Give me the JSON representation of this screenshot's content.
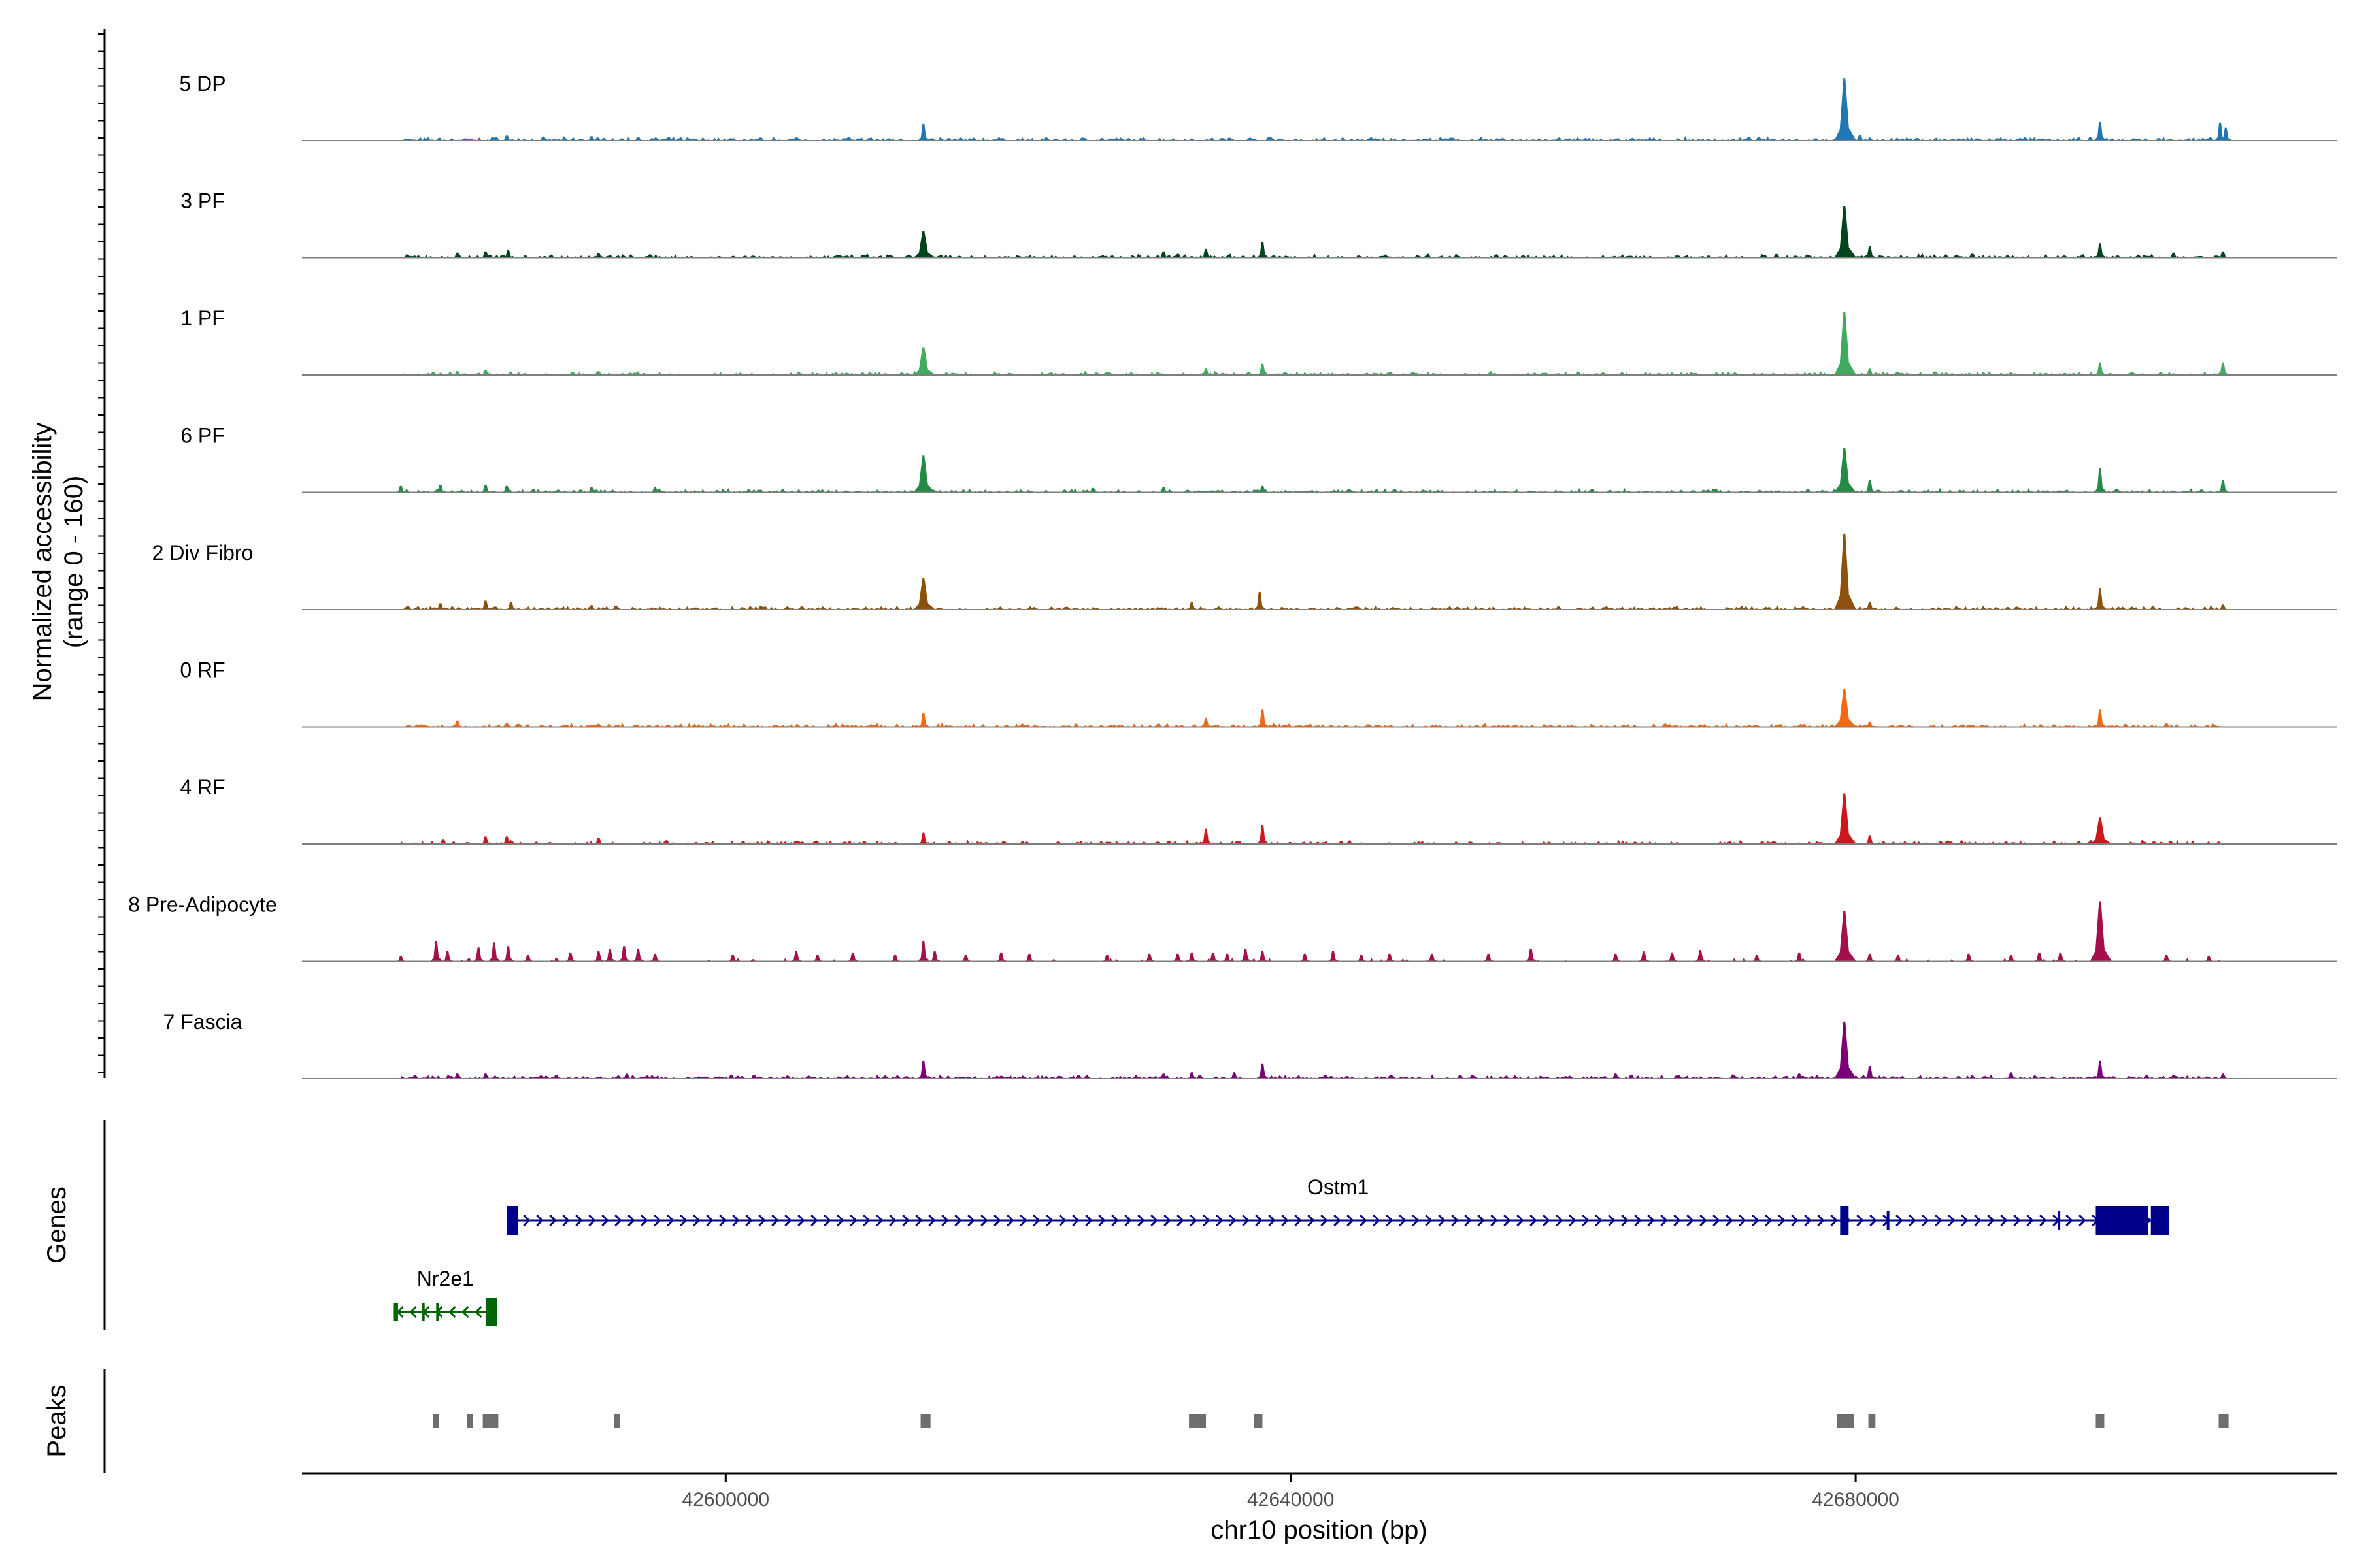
{
  "chart_data": {
    "type": "coverage",
    "region": {
      "chrom": "chr10",
      "start": 42570000,
      "end": 42713000
    },
    "ylabel": "Normalized accessibility",
    "ylabel_range": "(range 0 - 160)",
    "ylim": [
      0,
      160
    ],
    "xlabel": "chr10 position (bp)",
    "x_ticks": [
      42600000,
      42640000,
      42680000
    ],
    "x_tick_labels": [
      "42600000",
      "42640000",
      "42680000"
    ],
    "data_extent": [
      42570000,
      42706000
    ],
    "groups": [
      {
        "name": "5 DP",
        "color": "#1f78b4",
        "peaks": [
          [
            42583500,
            6
          ],
          [
            42584500,
            8
          ],
          [
            42590500,
            7
          ],
          [
            42593800,
            6
          ],
          [
            42614000,
            26
          ],
          [
            42679200,
            98
          ],
          [
            42680300,
            9
          ],
          [
            42697300,
            30
          ],
          [
            42705800,
            28
          ],
          [
            42706200,
            20
          ]
        ]
      },
      {
        "name": "3 PF",
        "color": "#00441b",
        "peaks": [
          [
            42581000,
            8
          ],
          [
            42583000,
            10
          ],
          [
            42584600,
            12
          ],
          [
            42591000,
            7
          ],
          [
            42614000,
            42
          ],
          [
            42631000,
            10
          ],
          [
            42634000,
            14
          ],
          [
            42638000,
            25
          ],
          [
            42679200,
            82
          ],
          [
            42681000,
            18
          ],
          [
            42697300,
            23
          ],
          [
            42702500,
            8
          ],
          [
            42706000,
            10
          ]
        ]
      },
      {
        "name": "1 PF",
        "color": "#41ab5d",
        "peaks": [
          [
            42581000,
            6
          ],
          [
            42583000,
            8
          ],
          [
            42591000,
            6
          ],
          [
            42614000,
            44
          ],
          [
            42634000,
            10
          ],
          [
            42638000,
            18
          ],
          [
            42679200,
            100
          ],
          [
            42681000,
            10
          ],
          [
            42697300,
            20
          ],
          [
            42706000,
            20
          ]
        ]
      },
      {
        "name": "6 PF",
        "color": "#238b45",
        "peaks": [
          [
            42577000,
            10
          ],
          [
            42579800,
            12
          ],
          [
            42583000,
            12
          ],
          [
            42584500,
            10
          ],
          [
            42590500,
            8
          ],
          [
            42595000,
            8
          ],
          [
            42614000,
            58
          ],
          [
            42626000,
            7
          ],
          [
            42631000,
            8
          ],
          [
            42638000,
            10
          ],
          [
            42679200,
            70
          ],
          [
            42681000,
            20
          ],
          [
            42697300,
            38
          ],
          [
            42706000,
            20
          ]
        ]
      },
      {
        "name": "2 Div Fibro",
        "color": "#8c510a",
        "peaks": [
          [
            42577500,
            6
          ],
          [
            42579800,
            10
          ],
          [
            42583000,
            14
          ],
          [
            42584800,
            12
          ],
          [
            42590500,
            7
          ],
          [
            42602500,
            6
          ],
          [
            42614000,
            50
          ],
          [
            42633000,
            12
          ],
          [
            42637800,
            28
          ],
          [
            42679200,
            120
          ],
          [
            42681000,
            12
          ],
          [
            42697300,
            34
          ],
          [
            42706000,
            8
          ]
        ]
      },
      {
        "name": "0 RF",
        "color": "#f16913",
        "peaks": [
          [
            42581000,
            10
          ],
          [
            42584500,
            6
          ],
          [
            42591000,
            5
          ],
          [
            42614000,
            22
          ],
          [
            42634000,
            14
          ],
          [
            42638000,
            28
          ],
          [
            42679200,
            60
          ],
          [
            42681000,
            8
          ],
          [
            42697300,
            28
          ],
          [
            42702000,
            6
          ]
        ]
      },
      {
        "name": "4 RF",
        "color": "#cb181d",
        "peaks": [
          [
            42580000,
            8
          ],
          [
            42583000,
            12
          ],
          [
            42584500,
            12
          ],
          [
            42591000,
            10
          ],
          [
            42614000,
            18
          ],
          [
            42634000,
            24
          ],
          [
            42638000,
            30
          ],
          [
            42679200,
            80
          ],
          [
            42681000,
            14
          ],
          [
            42697300,
            42
          ]
        ]
      },
      {
        "name": "8 Pre-Adipocyte",
        "color": "#a50f4a",
        "peaks": [
          [
            42577000,
            8
          ],
          [
            42579500,
            32
          ],
          [
            42580300,
            16
          ],
          [
            42582500,
            22
          ],
          [
            42583600,
            30
          ],
          [
            42584600,
            24
          ],
          [
            42586000,
            10
          ],
          [
            42589000,
            14
          ],
          [
            42591000,
            16
          ],
          [
            42591800,
            20
          ],
          [
            42592800,
            24
          ],
          [
            42593800,
            20
          ],
          [
            42595000,
            12
          ],
          [
            42600500,
            10
          ],
          [
            42605000,
            16
          ],
          [
            42606500,
            10
          ],
          [
            42609000,
            14
          ],
          [
            42612000,
            10
          ],
          [
            42614000,
            32
          ],
          [
            42614800,
            16
          ],
          [
            42617000,
            10
          ],
          [
            42619500,
            14
          ],
          [
            42621500,
            12
          ],
          [
            42627000,
            10
          ],
          [
            42630000,
            12
          ],
          [
            42632000,
            12
          ],
          [
            42633000,
            14
          ],
          [
            42634500,
            14
          ],
          [
            42635500,
            12
          ],
          [
            42636800,
            20
          ],
          [
            42638000,
            16
          ],
          [
            42641000,
            12
          ],
          [
            42643000,
            16
          ],
          [
            42645000,
            10
          ],
          [
            42647000,
            12
          ],
          [
            42650000,
            12
          ],
          [
            42654000,
            12
          ],
          [
            42657000,
            20
          ],
          [
            42663000,
            12
          ],
          [
            42665000,
            16
          ],
          [
            42667000,
            14
          ],
          [
            42669000,
            18
          ],
          [
            42673000,
            10
          ],
          [
            42676000,
            14
          ],
          [
            42679200,
            80
          ],
          [
            42681000,
            12
          ],
          [
            42683000,
            10
          ],
          [
            42688000,
            12
          ],
          [
            42691000,
            10
          ],
          [
            42693000,
            14
          ],
          [
            42694500,
            14
          ],
          [
            42697300,
            95
          ],
          [
            42702000,
            10
          ],
          [
            42705000,
            8
          ]
        ]
      },
      {
        "name": "7 Fascia",
        "color": "#7a0177",
        "peaks": [
          [
            42578000,
            6
          ],
          [
            42581000,
            8
          ],
          [
            42583000,
            8
          ],
          [
            42588000,
            6
          ],
          [
            42593000,
            8
          ],
          [
            42602000,
            6
          ],
          [
            42614000,
            28
          ],
          [
            42625000,
            6
          ],
          [
            42631000,
            8
          ],
          [
            42633000,
            10
          ],
          [
            42636000,
            10
          ],
          [
            42638000,
            24
          ],
          [
            42652000,
            6
          ],
          [
            42663000,
            8
          ],
          [
            42676000,
            8
          ],
          [
            42679200,
            90
          ],
          [
            42681000,
            20
          ],
          [
            42691000,
            10
          ],
          [
            42697300,
            28
          ],
          [
            42702500,
            6
          ],
          [
            42706000,
            8
          ]
        ]
      }
    ],
    "genes": [
      {
        "name": "Ostm1",
        "strand": "+",
        "color": "#00008b",
        "start": 42584500,
        "end": 42702200,
        "exons": [
          [
            42584500,
            42585300
          ],
          [
            42678900,
            42679500
          ],
          [
            42682200,
            42682300
          ],
          [
            42694300,
            42694400
          ],
          [
            42697000,
            42700700
          ],
          [
            42700900,
            42702200
          ]
        ]
      },
      {
        "name": "Nr2e1",
        "strand": "-",
        "color": "#006400",
        "start": 42576500,
        "end": 42583800,
        "exons": [
          [
            42576500,
            42576800
          ],
          [
            42578500,
            42578600
          ],
          [
            42579500,
            42579600
          ],
          [
            42583000,
            42583800
          ]
        ]
      }
    ],
    "peaks_track": [
      [
        42579300,
        42579700
      ],
      [
        42581700,
        42582100
      ],
      [
        42582800,
        42583900
      ],
      [
        42592100,
        42592500
      ],
      [
        42613800,
        42614500
      ],
      [
        42632800,
        42634000
      ],
      [
        42637400,
        42638000
      ],
      [
        42678700,
        42679900
      ],
      [
        42680900,
        42681400
      ],
      [
        42697000,
        42697600
      ],
      [
        42705700,
        42706400
      ]
    ]
  }
}
